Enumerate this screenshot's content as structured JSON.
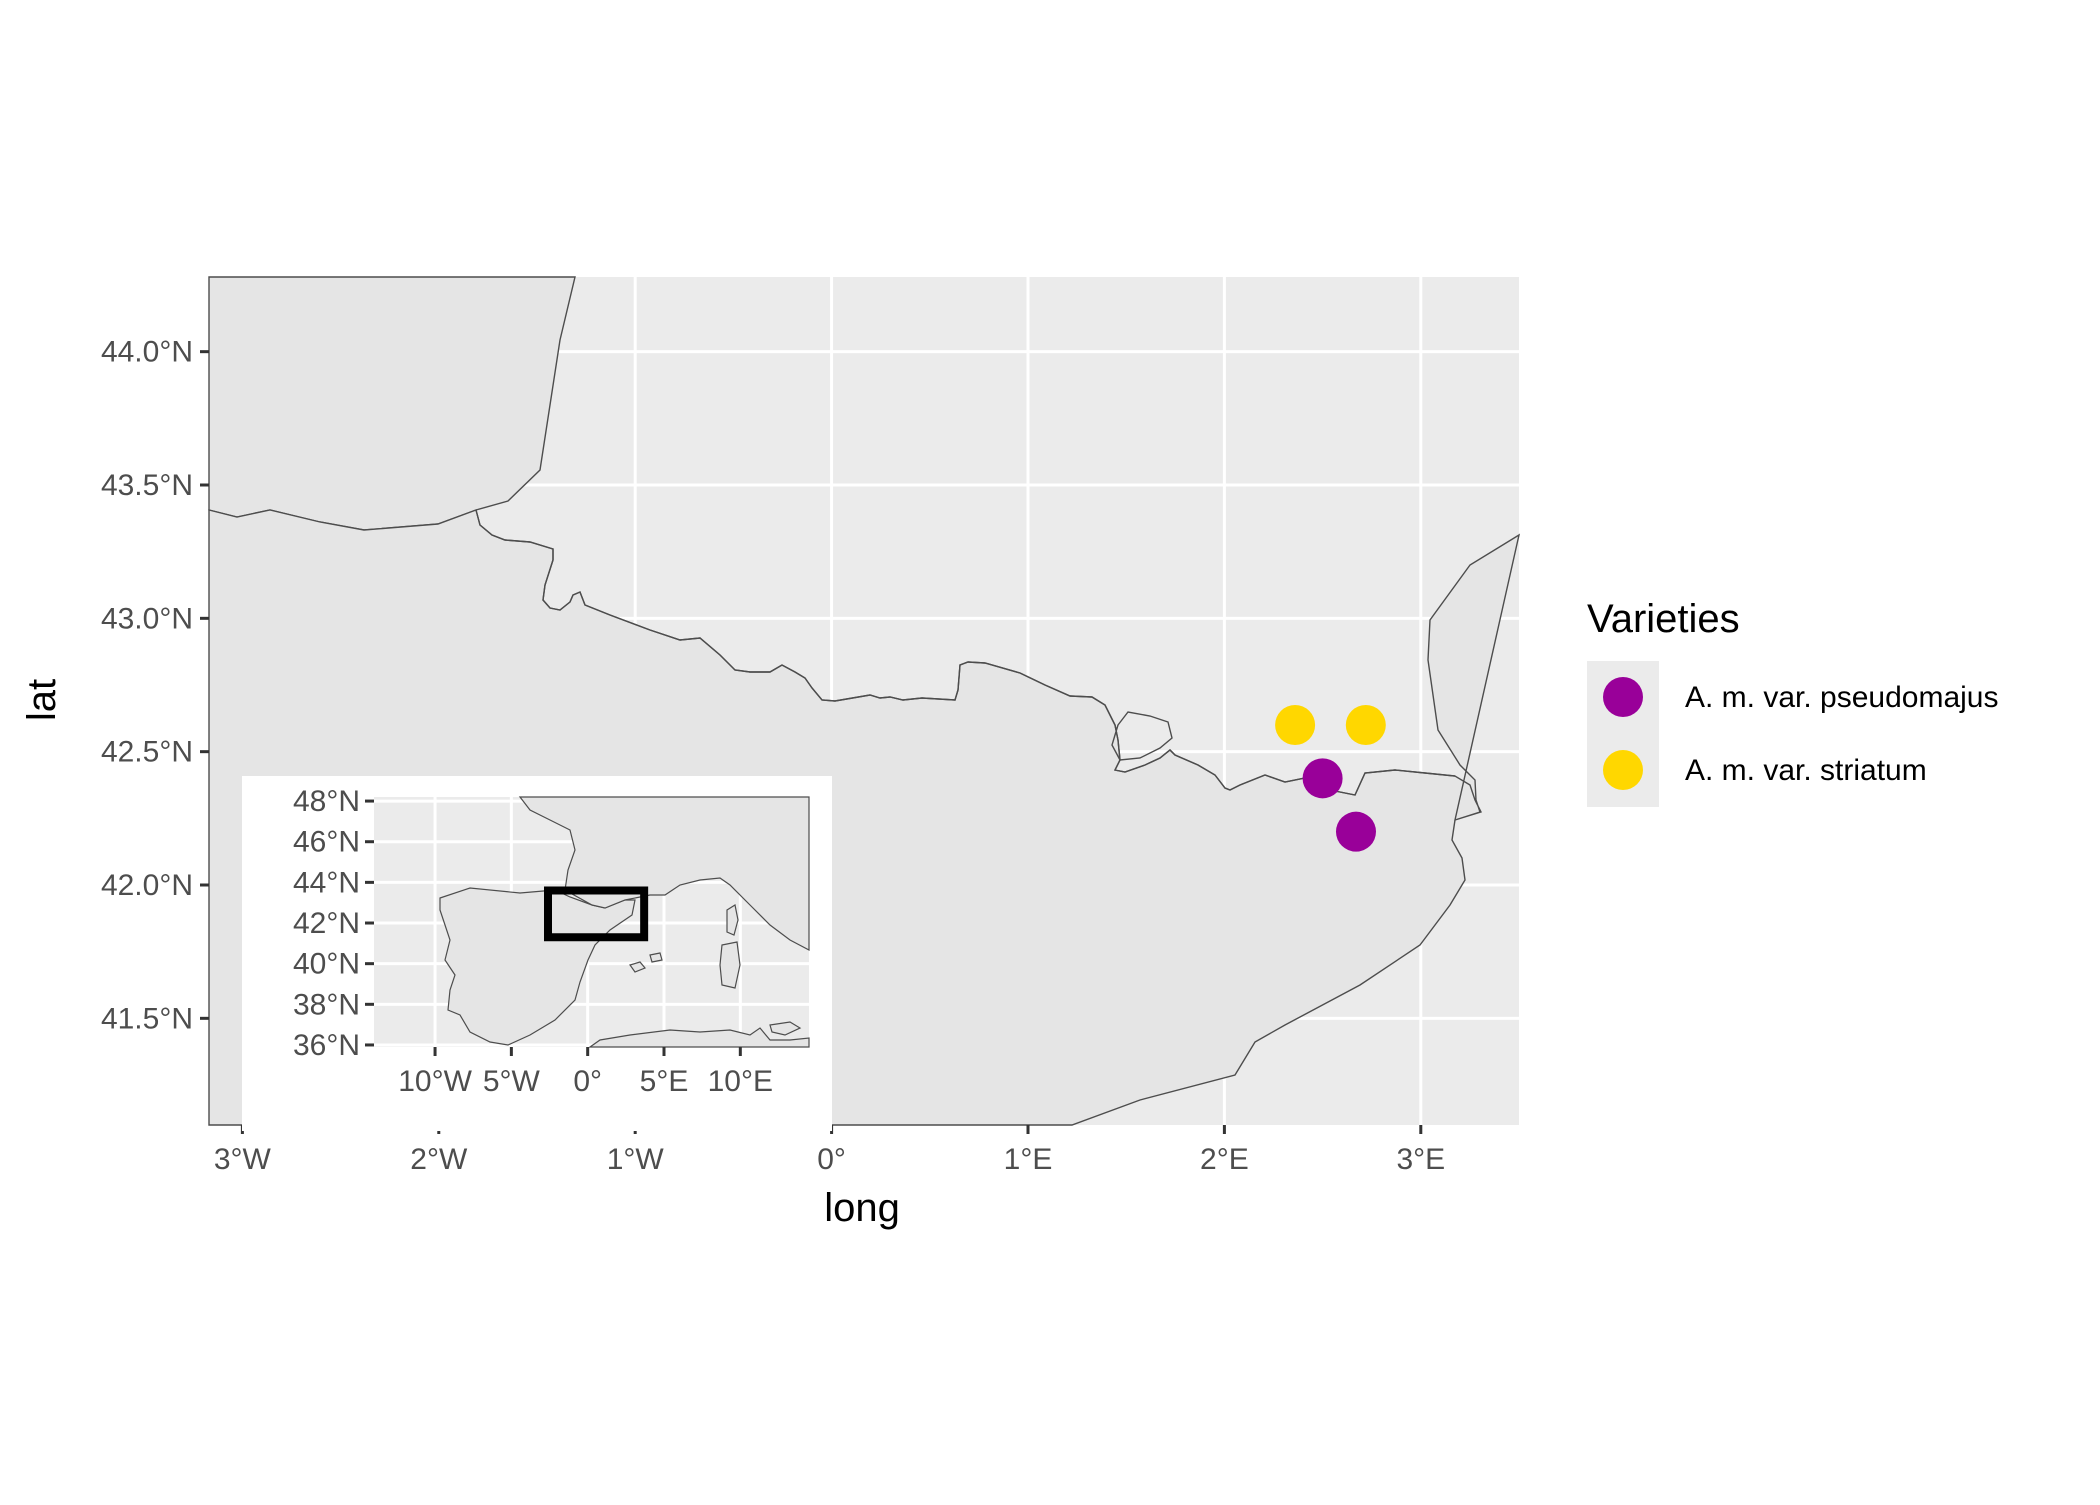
{
  "chart_data": {
    "type": "scatter",
    "map": "Pyrenees region (France / Spain)",
    "xlabel": "long",
    "ylabel": "lat",
    "xlim": [
      -3.17,
      3.5
    ],
    "ylim": [
      41.1,
      44.28
    ],
    "x_ticks": [
      {
        "value": -3,
        "label": "3°W"
      },
      {
        "value": -2,
        "label": "2°W"
      },
      {
        "value": -1,
        "label": "1°W"
      },
      {
        "value": 0,
        "label": "0°"
      },
      {
        "value": 1,
        "label": "1°E"
      },
      {
        "value": 2,
        "label": "2°E"
      },
      {
        "value": 3,
        "label": "3°E"
      }
    ],
    "y_ticks": [
      {
        "value": 41.5,
        "label": "41.5°N"
      },
      {
        "value": 42.0,
        "label": "42.0°N"
      },
      {
        "value": 42.5,
        "label": "42.5°N"
      },
      {
        "value": 43.0,
        "label": "43.0°N"
      },
      {
        "value": 43.5,
        "label": "43.5°N"
      },
      {
        "value": 44.0,
        "label": "44.0°N"
      }
    ],
    "series": [
      {
        "name": "A. m. var. pseudomajus",
        "color": "#990099",
        "points": [
          {
            "x": 2.5,
            "y": 42.4
          },
          {
            "x": 2.67,
            "y": 42.2
          }
        ]
      },
      {
        "name": "A. m. var. striatum",
        "color": "#FFD700",
        "points": [
          {
            "x": 2.36,
            "y": 42.6
          },
          {
            "x": 2.72,
            "y": 42.6
          }
        ]
      }
    ],
    "grid": true,
    "panel_color": "#EBEBEB",
    "land_color": "#E5E5E5",
    "border_color": "#4D4D4D",
    "legend": {
      "title": "Varieties",
      "position": "right"
    },
    "inset": {
      "xlim": [
        -14,
        14.5
      ],
      "ylim": [
        35.9,
        48.2
      ],
      "x_ticks": [
        {
          "value": -10,
          "label": "10°W"
        },
        {
          "value": -5,
          "label": "5°W"
        },
        {
          "value": 0,
          "label": "0°"
        },
        {
          "value": 5,
          "label": "5°E"
        },
        {
          "value": 10,
          "label": "10°E"
        }
      ],
      "y_ticks": [
        {
          "value": 36,
          "label": "36°N"
        },
        {
          "value": 38,
          "label": "38°N"
        },
        {
          "value": 40,
          "label": "40°N"
        },
        {
          "value": 42,
          "label": "42°N"
        },
        {
          "value": 44,
          "label": "44°N"
        },
        {
          "value": 46,
          "label": "46°N"
        },
        {
          "value": 48,
          "label": "48°N"
        }
      ],
      "extent_box": {
        "x": [
          -2.6,
          3.7
        ],
        "y": [
          41.3,
          43.6
        ]
      }
    }
  }
}
